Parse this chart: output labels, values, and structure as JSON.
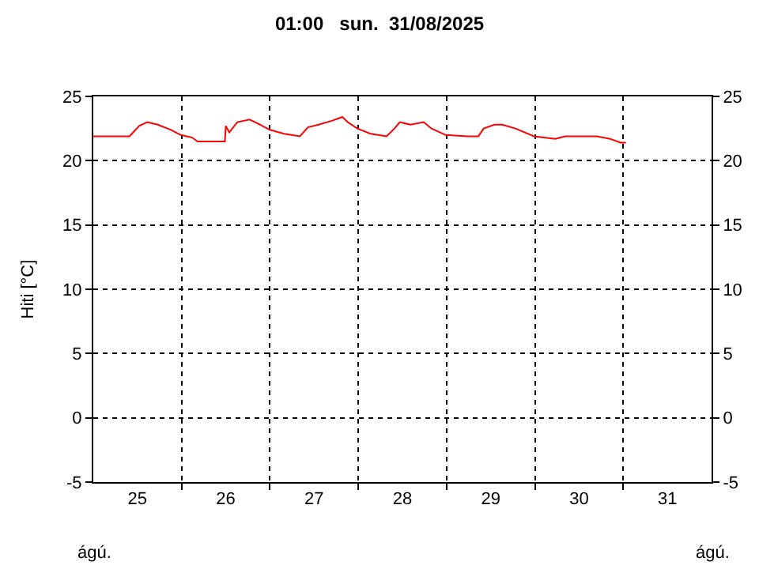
{
  "chart_data": {
    "type": "line",
    "title": "01:00   sun.  31/08/2025",
    "ylabel": "Hiti [°C]",
    "annotations": [
      "ágú.",
      "ágú."
    ],
    "series": [
      {
        "color": "#ff0000",
        "x": [
          25.0,
          25.41,
          25.52,
          25.61,
          25.73,
          25.88,
          25.99,
          26.12,
          26.18,
          26.49,
          26.5,
          26.54,
          26.63,
          26.77,
          26.86,
          27.0,
          27.16,
          27.34,
          27.43,
          27.55,
          27.7,
          27.82,
          27.88,
          27.99,
          28.14,
          28.32,
          28.41,
          28.47,
          28.59,
          28.74,
          28.83,
          28.99,
          29.24,
          29.36,
          29.42,
          29.54,
          29.63,
          29.78,
          29.99,
          30.23,
          30.34,
          30.7,
          30.85,
          30.97,
          31.03
        ],
        "values": [
          21.9,
          21.9,
          22.7,
          23.0,
          22.8,
          22.4,
          22.0,
          21.8,
          21.5,
          21.5,
          22.7,
          22.2,
          23.0,
          23.2,
          22.9,
          22.4,
          22.1,
          21.9,
          22.6,
          22.8,
          23.1,
          23.4,
          23.0,
          22.5,
          22.1,
          21.9,
          22.5,
          23.0,
          22.8,
          23.0,
          22.5,
          22.0,
          21.9,
          21.9,
          22.5,
          22.8,
          22.8,
          22.5,
          21.9,
          21.7,
          21.9,
          21.9,
          21.7,
          21.4,
          21.4
        ]
      }
    ],
    "xlim": [
      25,
      32
    ],
    "xticks": [
      {
        "value": 25.5,
        "label": "25"
      },
      {
        "value": 26.5,
        "label": "26"
      },
      {
        "value": 27.5,
        "label": "27"
      },
      {
        "value": 28.5,
        "label": "28"
      },
      {
        "value": 29.5,
        "label": "29"
      },
      {
        "value": 30.5,
        "label": "30"
      },
      {
        "value": 31.5,
        "label": "31"
      },
      {
        "value": 26,
        "label": null
      },
      {
        "value": 27,
        "label": null
      },
      {
        "value": 28,
        "label": null
      },
      {
        "value": 29,
        "label": null
      },
      {
        "value": 30,
        "label": null
      },
      {
        "value": 31,
        "label": null
      }
    ],
    "ylim": [
      -5,
      25
    ],
    "yticks": [
      -5,
      0,
      5,
      10,
      15,
      20,
      25
    ],
    "y2lim": [
      -5,
      25
    ],
    "y2ticks": [
      -5,
      0,
      5,
      10,
      15,
      20,
      25
    ],
    "grid": true,
    "marker": "none",
    "line_style": "solid"
  }
}
